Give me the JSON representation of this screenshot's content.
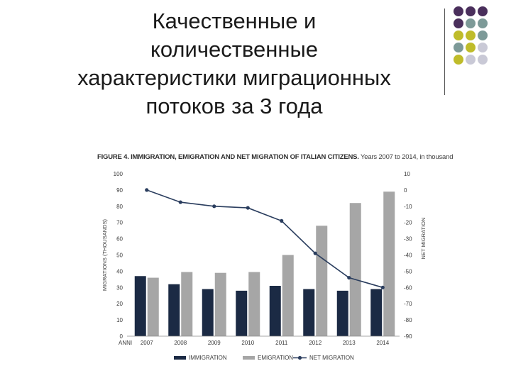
{
  "slide": {
    "title_lines": [
      "Качественные и",
      "количественные",
      "характеристики миграционных",
      "потоков за 3 года"
    ]
  },
  "decor": {
    "dot_colors": [
      "#4a2f5c",
      "#7d9a98",
      "#bfbc2a",
      "#c9c9d6"
    ]
  },
  "figure": {
    "title_bold": "FIGURE 4. IMMIGRATION, EMIGRATION AND NET MIGRATION OF ITALIAN CITIZENS.",
    "title_rest": " Years 2007 to 2014, in thousand"
  },
  "chart_data": {
    "type": "bar",
    "categories": [
      "2007",
      "2008",
      "2009",
      "2010",
      "2011",
      "2012",
      "2013",
      "2014"
    ],
    "x_prefix_label": "ANNI",
    "series": [
      {
        "name": "IMMIGRATION",
        "kind": "bar",
        "axis": "left",
        "color": "#1b2a44",
        "values": [
          37,
          32,
          29,
          28,
          31,
          29,
          28,
          29
        ]
      },
      {
        "name": "EMIGRATION",
        "kind": "bar",
        "axis": "left",
        "color": "#a6a6a6",
        "values": [
          36,
          39.5,
          39,
          39.5,
          50,
          68,
          82,
          89
        ]
      },
      {
        "name": "NET MIGRATION",
        "kind": "line",
        "axis": "right",
        "color": "#2a3d5e",
        "values": [
          0,
          -7.5,
          -10,
          -11,
          -19,
          -39,
          -54,
          -60
        ]
      }
    ],
    "ylabel": "MIGRATIONS (THOUSANDS)",
    "y2label": "NET MIGRATION",
    "ylim": [
      0,
      100
    ],
    "y2lim": [
      -90,
      10
    ],
    "yticks": [
      0,
      10,
      20,
      30,
      40,
      50,
      60,
      70,
      80,
      90,
      100
    ],
    "y2ticks": [
      10,
      0,
      -10,
      -20,
      -30,
      -40,
      -50,
      -60,
      -70,
      -80,
      -90
    ],
    "grid": false,
    "legend_position": "bottom"
  }
}
